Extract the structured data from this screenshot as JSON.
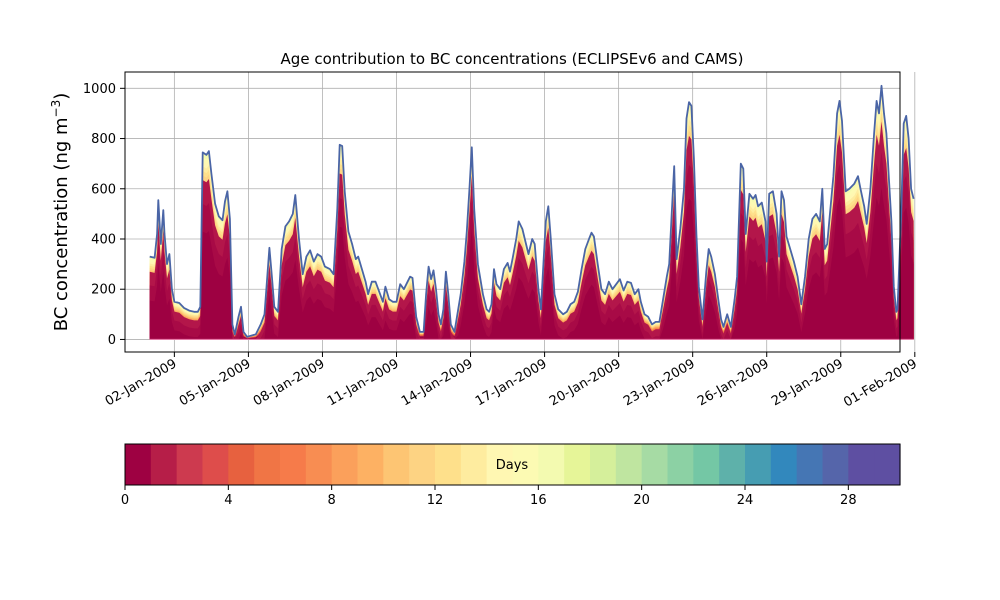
{
  "chart_data": {
    "type": "area",
    "title": "Age contribution to BC concentrations (ECLIPSEv6 and CAMS)",
    "ylabel_main": "BC concentration (ng m",
    "ylabel_sup": "−3",
    "ylabel_close": ")",
    "xlabel": "",
    "ylim": [
      -50,
      1065
    ],
    "xlim": [
      -1.0,
      30.4
    ],
    "grid": true,
    "y_ticks": [
      0,
      200,
      400,
      600,
      800,
      1000
    ],
    "x_ticks": [
      {
        "day": 1,
        "label": "02-Jan-2009"
      },
      {
        "day": 4,
        "label": "05-Jan-2009"
      },
      {
        "day": 7,
        "label": "08-Jan-2009"
      },
      {
        "day": 10,
        "label": "11-Jan-2009"
      },
      {
        "day": 13,
        "label": "14-Jan-2009"
      },
      {
        "day": 16,
        "label": "17-Jan-2009"
      },
      {
        "day": 19,
        "label": "20-Jan-2009"
      },
      {
        "day": 22,
        "label": "23-Jan-2009"
      },
      {
        "day": 25,
        "label": "26-Jan-2009"
      },
      {
        "day": 28,
        "label": "29-Jan-2009"
      },
      {
        "day": 31,
        "label": "01-Feb-2009"
      }
    ],
    "total_line_color": "#4a65a6",
    "total": [
      [
        0.0,
        330
      ],
      [
        0.2,
        325
      ],
      [
        0.3,
        420
      ],
      [
        0.35,
        555
      ],
      [
        0.45,
        380
      ],
      [
        0.55,
        515
      ],
      [
        0.6,
        420
      ],
      [
        0.7,
        300
      ],
      [
        0.8,
        340
      ],
      [
        0.9,
        200
      ],
      [
        1.0,
        150
      ],
      [
        1.2,
        145
      ],
      [
        1.4,
        125
      ],
      [
        1.6,
        115
      ],
      [
        1.8,
        110
      ],
      [
        1.95,
        110
      ],
      [
        2.05,
        130
      ],
      [
        2.15,
        745
      ],
      [
        2.3,
        735
      ],
      [
        2.4,
        750
      ],
      [
        2.5,
        660
      ],
      [
        2.65,
        540
      ],
      [
        2.8,
        490
      ],
      [
        2.95,
        475
      ],
      [
        3.05,
        550
      ],
      [
        3.15,
        590
      ],
      [
        3.25,
        480
      ],
      [
        3.35,
        60
      ],
      [
        3.45,
        20
      ],
      [
        3.6,
        90
      ],
      [
        3.7,
        130
      ],
      [
        3.8,
        30
      ],
      [
        3.95,
        10
      ],
      [
        4.1,
        15
      ],
      [
        4.3,
        20
      ],
      [
        4.5,
        60
      ],
      [
        4.65,
        100
      ],
      [
        4.75,
        230
      ],
      [
        4.85,
        365
      ],
      [
        4.95,
        250
      ],
      [
        5.05,
        130
      ],
      [
        5.2,
        110
      ],
      [
        5.35,
        360
      ],
      [
        5.5,
        450
      ],
      [
        5.65,
        470
      ],
      [
        5.8,
        500
      ],
      [
        5.9,
        575
      ],
      [
        6.05,
        400
      ],
      [
        6.2,
        260
      ],
      [
        6.35,
        330
      ],
      [
        6.5,
        355
      ],
      [
        6.65,
        310
      ],
      [
        6.8,
        340
      ],
      [
        6.95,
        330
      ],
      [
        7.1,
        290
      ],
      [
        7.3,
        280
      ],
      [
        7.45,
        260
      ],
      [
        7.6,
        520
      ],
      [
        7.7,
        775
      ],
      [
        7.8,
        770
      ],
      [
        7.9,
        590
      ],
      [
        8.05,
        430
      ],
      [
        8.2,
        380
      ],
      [
        8.35,
        320
      ],
      [
        8.45,
        330
      ],
      [
        8.6,
        280
      ],
      [
        8.75,
        230
      ],
      [
        8.85,
        180
      ],
      [
        9.0,
        230
      ],
      [
        9.15,
        230
      ],
      [
        9.3,
        190
      ],
      [
        9.45,
        150
      ],
      [
        9.55,
        210
      ],
      [
        9.7,
        160
      ],
      [
        9.85,
        150
      ],
      [
        10.0,
        150
      ],
      [
        10.15,
        220
      ],
      [
        10.3,
        200
      ],
      [
        10.45,
        230
      ],
      [
        10.55,
        250
      ],
      [
        10.65,
        245
      ],
      [
        10.8,
        90
      ],
      [
        10.95,
        30
      ],
      [
        11.1,
        30
      ],
      [
        11.2,
        180
      ],
      [
        11.3,
        290
      ],
      [
        11.4,
        240
      ],
      [
        11.5,
        275
      ],
      [
        11.6,
        200
      ],
      [
        11.7,
        100
      ],
      [
        11.8,
        60
      ],
      [
        11.9,
        120
      ],
      [
        12.0,
        270
      ],
      [
        12.1,
        180
      ],
      [
        12.2,
        60
      ],
      [
        12.35,
        30
      ],
      [
        12.5,
        120
      ],
      [
        12.6,
        180
      ],
      [
        12.75,
        310
      ],
      [
        12.85,
        430
      ],
      [
        12.95,
        590
      ],
      [
        13.05,
        765
      ],
      [
        13.15,
        520
      ],
      [
        13.3,
        300
      ],
      [
        13.5,
        180
      ],
      [
        13.65,
        120
      ],
      [
        13.75,
        110
      ],
      [
        13.85,
        140
      ],
      [
        13.95,
        280
      ],
      [
        14.05,
        220
      ],
      [
        14.2,
        200
      ],
      [
        14.35,
        280
      ],
      [
        14.5,
        305
      ],
      [
        14.6,
        270
      ],
      [
        14.7,
        320
      ],
      [
        14.85,
        400
      ],
      [
        14.95,
        470
      ],
      [
        15.1,
        440
      ],
      [
        15.2,
        400
      ],
      [
        15.35,
        340
      ],
      [
        15.5,
        400
      ],
      [
        15.6,
        380
      ],
      [
        15.75,
        200
      ],
      [
        15.85,
        120
      ],
      [
        15.95,
        300
      ],
      [
        16.05,
        470
      ],
      [
        16.15,
        530
      ],
      [
        16.25,
        400
      ],
      [
        16.4,
        180
      ],
      [
        16.55,
        120
      ],
      [
        16.75,
        100
      ],
      [
        16.9,
        110
      ],
      [
        17.05,
        140
      ],
      [
        17.2,
        150
      ],
      [
        17.35,
        190
      ],
      [
        17.5,
        280
      ],
      [
        17.65,
        360
      ],
      [
        17.8,
        400
      ],
      [
        17.9,
        425
      ],
      [
        18.0,
        410
      ],
      [
        18.15,
        300
      ],
      [
        18.3,
        200
      ],
      [
        18.45,
        180
      ],
      [
        18.6,
        230
      ],
      [
        18.75,
        200
      ],
      [
        18.9,
        220
      ],
      [
        19.05,
        240
      ],
      [
        19.2,
        195
      ],
      [
        19.35,
        230
      ],
      [
        19.5,
        225
      ],
      [
        19.65,
        180
      ],
      [
        19.8,
        200
      ],
      [
        19.9,
        150
      ],
      [
        20.05,
        100
      ],
      [
        20.2,
        90
      ],
      [
        20.35,
        60
      ],
      [
        20.5,
        70
      ],
      [
        20.65,
        70
      ],
      [
        20.8,
        160
      ],
      [
        20.95,
        250
      ],
      [
        21.05,
        300
      ],
      [
        21.15,
        500
      ],
      [
        21.25,
        690
      ],
      [
        21.35,
        320
      ],
      [
        21.5,
        440
      ],
      [
        21.65,
        600
      ],
      [
        21.75,
        880
      ],
      [
        21.85,
        945
      ],
      [
        21.95,
        930
      ],
      [
        22.05,
        720
      ],
      [
        22.15,
        420
      ],
      [
        22.25,
        210
      ],
      [
        22.4,
        80
      ],
      [
        22.55,
        270
      ],
      [
        22.65,
        360
      ],
      [
        22.75,
        330
      ],
      [
        22.9,
        260
      ],
      [
        23.05,
        150
      ],
      [
        23.15,
        80
      ],
      [
        23.25,
        50
      ],
      [
        23.4,
        100
      ],
      [
        23.55,
        50
      ],
      [
        23.7,
        160
      ],
      [
        23.8,
        250
      ],
      [
        23.95,
        700
      ],
      [
        24.05,
        680
      ],
      [
        24.15,
        420
      ],
      [
        24.3,
        580
      ],
      [
        24.45,
        560
      ],
      [
        24.55,
        575
      ],
      [
        24.65,
        530
      ],
      [
        24.8,
        545
      ],
      [
        24.95,
        470
      ],
      [
        25.0,
        310
      ],
      [
        25.1,
        580
      ],
      [
        25.25,
        590
      ],
      [
        25.4,
        500
      ],
      [
        25.5,
        330
      ],
      [
        25.6,
        590
      ],
      [
        25.7,
        555
      ],
      [
        25.8,
        410
      ],
      [
        25.95,
        360
      ],
      [
        26.1,
        310
      ],
      [
        26.25,
        250
      ],
      [
        26.4,
        140
      ],
      [
        26.55,
        250
      ],
      [
        26.7,
        400
      ],
      [
        26.85,
        480
      ],
      [
        27.0,
        500
      ],
      [
        27.15,
        470
      ],
      [
        27.25,
        600
      ],
      [
        27.35,
        360
      ],
      [
        27.45,
        380
      ],
      [
        27.55,
        490
      ],
      [
        27.7,
        650
      ],
      [
        27.85,
        900
      ],
      [
        27.95,
        950
      ],
      [
        28.05,
        870
      ],
      [
        28.2,
        590
      ],
      [
        28.35,
        600
      ],
      [
        28.55,
        620
      ],
      [
        28.7,
        650
      ],
      [
        28.8,
        600
      ],
      [
        28.95,
        530
      ],
      [
        29.05,
        460
      ],
      [
        29.2,
        600
      ],
      [
        29.35,
        820
      ],
      [
        29.45,
        950
      ],
      [
        29.55,
        900
      ],
      [
        29.65,
        1010
      ],
      [
        29.75,
        900
      ],
      [
        29.85,
        820
      ],
      [
        29.95,
        640
      ],
      [
        30.05,
        470
      ],
      [
        30.15,
        210
      ],
      [
        30.25,
        110
      ],
      [
        30.3,
        120
      ],
      [
        30.45,
        500
      ],
      [
        30.55,
        860
      ],
      [
        30.65,
        890
      ],
      [
        30.75,
        800
      ],
      [
        30.85,
        600
      ],
      [
        30.95,
        560
      ]
    ],
    "colorbar": {
      "label": "Days",
      "min": 0,
      "max": 30,
      "ticks": [
        0,
        4,
        8,
        12,
        16,
        20,
        24,
        28
      ],
      "colors": [
        "#9e0142",
        "#b61e48",
        "#cd3a4f",
        "#de4d4b",
        "#e7613f",
        "#f07545",
        "#f67b4a",
        "#f88d52",
        "#fba05b",
        "#fdb163",
        "#fdc573",
        "#fdd383",
        "#fee08b",
        "#feec9f",
        "#fff7b2",
        "#fcfab3",
        "#f3fab0",
        "#e6f598",
        "#d5ef9b",
        "#bfe5a0",
        "#a6dba4",
        "#8cd1a4",
        "#74c7a5",
        "#5eb1aa",
        "#469db2",
        "#3288bd",
        "#4576b4",
        "#5565aa",
        "#5e4fa2",
        "#5e4fa2"
      ]
    }
  }
}
